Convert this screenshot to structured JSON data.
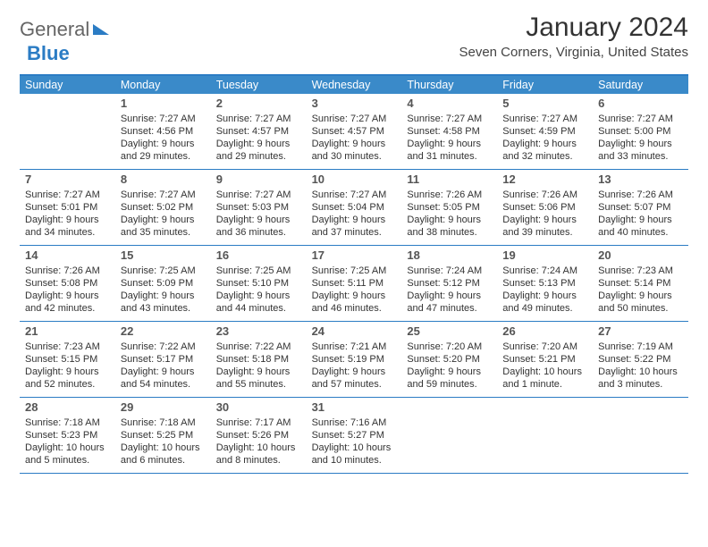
{
  "logo": {
    "general": "General",
    "blue": "Blue"
  },
  "title": "January 2024",
  "location": "Seven Corners, Virginia, United States",
  "header_bg": "#3a8ac9",
  "border_color": "#2b7cc4",
  "days_of_week": [
    "Sunday",
    "Monday",
    "Tuesday",
    "Wednesday",
    "Thursday",
    "Friday",
    "Saturday"
  ],
  "weeks": [
    [
      {
        "n": ""
      },
      {
        "n": "1",
        "l1": "Sunrise: 7:27 AM",
        "l2": "Sunset: 4:56 PM",
        "l3": "Daylight: 9 hours",
        "l4": "and 29 minutes."
      },
      {
        "n": "2",
        "l1": "Sunrise: 7:27 AM",
        "l2": "Sunset: 4:57 PM",
        "l3": "Daylight: 9 hours",
        "l4": "and 29 minutes."
      },
      {
        "n": "3",
        "l1": "Sunrise: 7:27 AM",
        "l2": "Sunset: 4:57 PM",
        "l3": "Daylight: 9 hours",
        "l4": "and 30 minutes."
      },
      {
        "n": "4",
        "l1": "Sunrise: 7:27 AM",
        "l2": "Sunset: 4:58 PM",
        "l3": "Daylight: 9 hours",
        "l4": "and 31 minutes."
      },
      {
        "n": "5",
        "l1": "Sunrise: 7:27 AM",
        "l2": "Sunset: 4:59 PM",
        "l3": "Daylight: 9 hours",
        "l4": "and 32 minutes."
      },
      {
        "n": "6",
        "l1": "Sunrise: 7:27 AM",
        "l2": "Sunset: 5:00 PM",
        "l3": "Daylight: 9 hours",
        "l4": "and 33 minutes."
      }
    ],
    [
      {
        "n": "7",
        "l1": "Sunrise: 7:27 AM",
        "l2": "Sunset: 5:01 PM",
        "l3": "Daylight: 9 hours",
        "l4": "and 34 minutes."
      },
      {
        "n": "8",
        "l1": "Sunrise: 7:27 AM",
        "l2": "Sunset: 5:02 PM",
        "l3": "Daylight: 9 hours",
        "l4": "and 35 minutes."
      },
      {
        "n": "9",
        "l1": "Sunrise: 7:27 AM",
        "l2": "Sunset: 5:03 PM",
        "l3": "Daylight: 9 hours",
        "l4": "and 36 minutes."
      },
      {
        "n": "10",
        "l1": "Sunrise: 7:27 AM",
        "l2": "Sunset: 5:04 PM",
        "l3": "Daylight: 9 hours",
        "l4": "and 37 minutes."
      },
      {
        "n": "11",
        "l1": "Sunrise: 7:26 AM",
        "l2": "Sunset: 5:05 PM",
        "l3": "Daylight: 9 hours",
        "l4": "and 38 minutes."
      },
      {
        "n": "12",
        "l1": "Sunrise: 7:26 AM",
        "l2": "Sunset: 5:06 PM",
        "l3": "Daylight: 9 hours",
        "l4": "and 39 minutes."
      },
      {
        "n": "13",
        "l1": "Sunrise: 7:26 AM",
        "l2": "Sunset: 5:07 PM",
        "l3": "Daylight: 9 hours",
        "l4": "and 40 minutes."
      }
    ],
    [
      {
        "n": "14",
        "l1": "Sunrise: 7:26 AM",
        "l2": "Sunset: 5:08 PM",
        "l3": "Daylight: 9 hours",
        "l4": "and 42 minutes."
      },
      {
        "n": "15",
        "l1": "Sunrise: 7:25 AM",
        "l2": "Sunset: 5:09 PM",
        "l3": "Daylight: 9 hours",
        "l4": "and 43 minutes."
      },
      {
        "n": "16",
        "l1": "Sunrise: 7:25 AM",
        "l2": "Sunset: 5:10 PM",
        "l3": "Daylight: 9 hours",
        "l4": "and 44 minutes."
      },
      {
        "n": "17",
        "l1": "Sunrise: 7:25 AM",
        "l2": "Sunset: 5:11 PM",
        "l3": "Daylight: 9 hours",
        "l4": "and 46 minutes."
      },
      {
        "n": "18",
        "l1": "Sunrise: 7:24 AM",
        "l2": "Sunset: 5:12 PM",
        "l3": "Daylight: 9 hours",
        "l4": "and 47 minutes."
      },
      {
        "n": "19",
        "l1": "Sunrise: 7:24 AM",
        "l2": "Sunset: 5:13 PM",
        "l3": "Daylight: 9 hours",
        "l4": "and 49 minutes."
      },
      {
        "n": "20",
        "l1": "Sunrise: 7:23 AM",
        "l2": "Sunset: 5:14 PM",
        "l3": "Daylight: 9 hours",
        "l4": "and 50 minutes."
      }
    ],
    [
      {
        "n": "21",
        "l1": "Sunrise: 7:23 AM",
        "l2": "Sunset: 5:15 PM",
        "l3": "Daylight: 9 hours",
        "l4": "and 52 minutes."
      },
      {
        "n": "22",
        "l1": "Sunrise: 7:22 AM",
        "l2": "Sunset: 5:17 PM",
        "l3": "Daylight: 9 hours",
        "l4": "and 54 minutes."
      },
      {
        "n": "23",
        "l1": "Sunrise: 7:22 AM",
        "l2": "Sunset: 5:18 PM",
        "l3": "Daylight: 9 hours",
        "l4": "and 55 minutes."
      },
      {
        "n": "24",
        "l1": "Sunrise: 7:21 AM",
        "l2": "Sunset: 5:19 PM",
        "l3": "Daylight: 9 hours",
        "l4": "and 57 minutes."
      },
      {
        "n": "25",
        "l1": "Sunrise: 7:20 AM",
        "l2": "Sunset: 5:20 PM",
        "l3": "Daylight: 9 hours",
        "l4": "and 59 minutes."
      },
      {
        "n": "26",
        "l1": "Sunrise: 7:20 AM",
        "l2": "Sunset: 5:21 PM",
        "l3": "Daylight: 10 hours",
        "l4": "and 1 minute."
      },
      {
        "n": "27",
        "l1": "Sunrise: 7:19 AM",
        "l2": "Sunset: 5:22 PM",
        "l3": "Daylight: 10 hours",
        "l4": "and 3 minutes."
      }
    ],
    [
      {
        "n": "28",
        "l1": "Sunrise: 7:18 AM",
        "l2": "Sunset: 5:23 PM",
        "l3": "Daylight: 10 hours",
        "l4": "and 5 minutes."
      },
      {
        "n": "29",
        "l1": "Sunrise: 7:18 AM",
        "l2": "Sunset: 5:25 PM",
        "l3": "Daylight: 10 hours",
        "l4": "and 6 minutes."
      },
      {
        "n": "30",
        "l1": "Sunrise: 7:17 AM",
        "l2": "Sunset: 5:26 PM",
        "l3": "Daylight: 10 hours",
        "l4": "and 8 minutes."
      },
      {
        "n": "31",
        "l1": "Sunrise: 7:16 AM",
        "l2": "Sunset: 5:27 PM",
        "l3": "Daylight: 10 hours",
        "l4": "and 10 minutes."
      },
      {
        "n": ""
      },
      {
        "n": ""
      },
      {
        "n": ""
      }
    ]
  ]
}
